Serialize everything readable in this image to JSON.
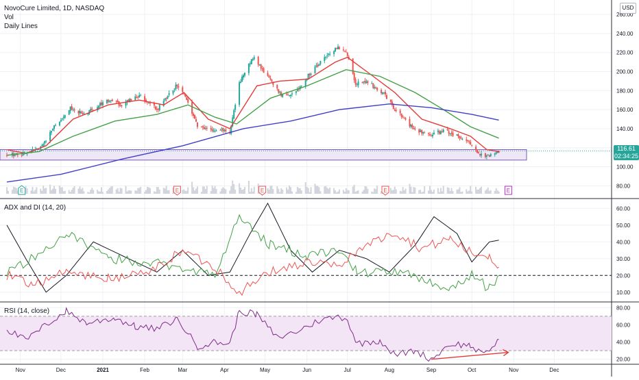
{
  "header": {
    "symbol": "NovoCure Limited, 1D, NASDAQ",
    "vol_label": "Vol",
    "lines_label": "Daily Lines",
    "currency": "USD"
  },
  "last_price": {
    "value": "116.61",
    "countdown": "02:34:25",
    "color": "#26a69a"
  },
  "indicators": {
    "adx_title": "ADX and DI (14, 20)",
    "rsi_title": "RSI (14, close)"
  },
  "colors": {
    "up": "#26a69a",
    "down": "#ef5350",
    "ema_fast": "#e53935",
    "ema_mid": "#43a047",
    "sma_slow": "#3f3fc7",
    "zone_fill": "#ede7f6",
    "zone_border": "#7e57c2",
    "adx": "#131722",
    "di_plus": "#43a047",
    "di_minus": "#ef5350",
    "rsi": "#7e2b8a",
    "rsi_band": "#f3e5f5",
    "trendline": "#e53935",
    "earnings_past": "#ef5350",
    "earnings_next": "#c026d3",
    "earnings_first": "#26a69a"
  },
  "chart_data": [
    {
      "type": "candlestick",
      "title": "NovoCure Limited, 1D, NASDAQ",
      "x_tick_labels": [
        "Nov",
        "Dec",
        "2021",
        "Feb",
        "Mar",
        "Apr",
        "May",
        "Jun",
        "Jul",
        "Aug",
        "Sep",
        "Oct",
        "Nov",
        "Dec"
      ],
      "y_tick_labels": [
        "80.00",
        "100.00",
        "120.00",
        "140.00",
        "160.00",
        "180.00",
        "200.00",
        "220.00",
        "240.00",
        "260.00"
      ],
      "ylim": [
        68,
        268
      ],
      "price_anchor_points": [
        [
          "2020-10-22",
          112
        ],
        [
          "2020-11-05",
          114
        ],
        [
          "2020-11-16",
          120
        ],
        [
          "2020-11-25",
          140
        ],
        [
          "2020-12-08",
          162
        ],
        [
          "2020-12-18",
          155
        ],
        [
          "2021-01-04",
          170
        ],
        [
          "2021-01-15",
          165
        ],
        [
          "2021-01-28",
          175
        ],
        [
          "2021-02-10",
          160
        ],
        [
          "2021-02-25",
          186
        ],
        [
          "2021-03-03",
          175
        ],
        [
          "2021-03-12",
          142
        ],
        [
          "2021-03-22",
          138
        ],
        [
          "2021-03-29",
          140
        ],
        [
          "2021-04-05",
          136
        ],
        [
          "2021-04-12",
          188
        ],
        [
          "2021-04-22",
          215
        ],
        [
          "2021-05-05",
          190
        ],
        [
          "2021-05-13",
          176
        ],
        [
          "2021-05-24",
          178
        ],
        [
          "2021-06-03",
          198
        ],
        [
          "2021-06-17",
          218
        ],
        [
          "2021-06-24",
          226
        ],
        [
          "2021-06-30",
          222
        ],
        [
          "2021-07-07",
          188
        ],
        [
          "2021-07-15",
          190
        ],
        [
          "2021-07-29",
          175
        ],
        [
          "2021-08-05",
          160
        ],
        [
          "2021-08-19",
          140
        ],
        [
          "2021-08-31",
          133
        ],
        [
          "2021-09-10",
          138
        ],
        [
          "2021-09-24",
          130
        ],
        [
          "2021-09-30",
          125
        ],
        [
          "2021-10-07",
          112
        ],
        [
          "2021-10-14",
          111
        ],
        [
          "2021-10-21",
          116
        ]
      ],
      "support_zone": [
        107,
        118
      ],
      "last_close": 116.61,
      "overlays": [
        {
          "name": "Daily Lines fast",
          "points": [
            [
              "2020-10-22",
              118
            ],
            [
              "2020-11-05",
              114
            ],
            [
              "2020-11-20",
              122
            ],
            [
              "2020-12-10",
              150
            ],
            [
              "2021-01-05",
              165
            ],
            [
              "2021-01-28",
              170
            ],
            [
              "2021-02-15",
              165
            ],
            [
              "2021-03-02",
              178
            ],
            [
              "2021-03-20",
              150
            ],
            [
              "2021-04-05",
              140
            ],
            [
              "2021-04-25",
              185
            ],
            [
              "2021-05-12",
              190
            ],
            [
              "2021-06-02",
              192
            ],
            [
              "2021-06-22",
              210
            ],
            [
              "2021-07-01",
              215
            ],
            [
              "2021-07-20",
              195
            ],
            [
              "2021-08-05",
              178
            ],
            [
              "2021-08-25",
              150
            ],
            [
              "2021-09-15",
              140
            ],
            [
              "2021-09-30",
              132
            ],
            [
              "2021-10-12",
              118
            ],
            [
              "2021-10-21",
              116
            ]
          ]
        },
        {
          "name": "Daily Lines mid",
          "points": [
            [
              "2020-10-22",
              112
            ],
            [
              "2020-11-15",
              116
            ],
            [
              "2020-12-10",
              132
            ],
            [
              "2021-01-10",
              148
            ],
            [
              "2021-02-10",
              155
            ],
            [
              "2021-03-05",
              165
            ],
            [
              "2021-03-25",
              152
            ],
            [
              "2021-04-10",
              145
            ],
            [
              "2021-05-05",
              172
            ],
            [
              "2021-06-01",
              185
            ],
            [
              "2021-06-30",
              202
            ],
            [
              "2021-07-25",
              195
            ],
            [
              "2021-08-20",
              178
            ],
            [
              "2021-09-10",
              160
            ],
            [
              "2021-09-30",
              142
            ],
            [
              "2021-10-21",
              130
            ]
          ]
        },
        {
          "name": "Daily Lines slow",
          "points": [
            [
              "2020-10-22",
              84
            ],
            [
              "2020-12-01",
              92
            ],
            [
              "2021-01-15",
              108
            ],
            [
              "2021-03-01",
              122
            ],
            [
              "2021-04-15",
              140
            ],
            [
              "2021-05-20",
              148
            ],
            [
              "2021-06-25",
              160
            ],
            [
              "2021-08-01",
              166
            ],
            [
              "2021-09-01",
              162
            ],
            [
              "2021-10-01",
              155
            ],
            [
              "2021-10-21",
              149
            ]
          ]
        }
      ],
      "earnings_markers": [
        "2020-11-02",
        "2021-02-25",
        "2021-04-29",
        "2021-07-29",
        "2021-10-28"
      ],
      "earnings_marker_letter": "E"
    },
    {
      "type": "line",
      "title": "ADX and DI (14, 20)",
      "y_tick_labels": [
        "10.00",
        "20.00",
        "30.00",
        "40.00",
        "50.00",
        "60.00"
      ],
      "ylim": [
        5,
        65
      ],
      "reference_level": 20,
      "series": [
        {
          "name": "ADX",
          "points": [
            [
              "2020-10-22",
              50
            ],
            [
              "2020-11-05",
              30
            ],
            [
              "2020-11-20",
              10
            ],
            [
              "2020-12-05",
              20
            ],
            [
              "2020-12-25",
              40
            ],
            [
              "2021-01-20",
              30
            ],
            [
              "2021-02-10",
              22
            ],
            [
              "2021-03-01",
              35
            ],
            [
              "2021-03-20",
              20
            ],
            [
              "2021-04-05",
              22
            ],
            [
              "2021-04-20",
              45
            ],
            [
              "2021-05-03",
              63
            ],
            [
              "2021-05-20",
              35
            ],
            [
              "2021-06-05",
              22
            ],
            [
              "2021-06-25",
              35
            ],
            [
              "2021-07-15",
              30
            ],
            [
              "2021-08-01",
              22
            ],
            [
              "2021-08-20",
              38
            ],
            [
              "2021-09-03",
              55
            ],
            [
              "2021-09-20",
              45
            ],
            [
              "2021-10-01",
              28
            ],
            [
              "2021-10-14",
              40
            ],
            [
              "2021-10-21",
              41
            ]
          ]
        },
        {
          "name": "+DI",
          "points": [
            [
              "2020-10-22",
              22
            ],
            [
              "2020-11-10",
              30
            ],
            [
              "2020-12-05",
              45
            ],
            [
              "2021-01-05",
              30
            ],
            [
              "2021-02-05",
              28
            ],
            [
              "2021-03-01",
              25
            ],
            [
              "2021-03-25",
              20
            ],
            [
              "2021-04-12",
              55
            ],
            [
              "2021-05-05",
              38
            ],
            [
              "2021-06-01",
              32
            ],
            [
              "2021-06-25",
              35
            ],
            [
              "2021-07-08",
              22
            ],
            [
              "2021-08-05",
              22
            ],
            [
              "2021-08-25",
              18
            ],
            [
              "2021-09-15",
              12
            ],
            [
              "2021-10-01",
              20
            ],
            [
              "2021-10-14",
              12
            ],
            [
              "2021-10-21",
              20
            ]
          ]
        },
        {
          "name": "-DI",
          "points": [
            [
              "2020-10-22",
              20
            ],
            [
              "2020-11-10",
              15
            ],
            [
              "2020-12-05",
              22
            ],
            [
              "2021-01-05",
              18
            ],
            [
              "2021-02-05",
              22
            ],
            [
              "2021-03-01",
              35
            ],
            [
              "2021-03-25",
              25
            ],
            [
              "2021-04-12",
              10
            ],
            [
              "2021-05-05",
              22
            ],
            [
              "2021-06-01",
              28
            ],
            [
              "2021-06-25",
              25
            ],
            [
              "2021-07-08",
              35
            ],
            [
              "2021-08-05",
              46
            ],
            [
              "2021-08-25",
              36
            ],
            [
              "2021-09-15",
              42
            ],
            [
              "2021-10-01",
              33
            ],
            [
              "2021-10-14",
              32
            ],
            [
              "2021-10-21",
              25
            ]
          ]
        }
      ]
    },
    {
      "type": "line",
      "title": "RSI (14, close)",
      "y_tick_labels": [
        "20.00",
        "40.00",
        "60.00",
        "80.00"
      ],
      "ylim": [
        15,
        85
      ],
      "bands": [
        30,
        70
      ],
      "series": [
        {
          "name": "RSI",
          "points": [
            [
              "2020-10-22",
              55
            ],
            [
              "2020-11-05",
              42
            ],
            [
              "2020-11-20",
              60
            ],
            [
              "2020-12-05",
              76
            ],
            [
              "2020-12-20",
              62
            ],
            [
              "2021-01-10",
              68
            ],
            [
              "2021-01-25",
              58
            ],
            [
              "2021-02-10",
              55
            ],
            [
              "2021-02-25",
              67
            ],
            [
              "2021-03-12",
              35
            ],
            [
              "2021-03-25",
              40
            ],
            [
              "2021-04-05",
              38
            ],
            [
              "2021-04-12",
              76
            ],
            [
              "2021-04-25",
              72
            ],
            [
              "2021-05-10",
              45
            ],
            [
              "2021-05-24",
              52
            ],
            [
              "2021-06-10",
              65
            ],
            [
              "2021-06-25",
              70
            ],
            [
              "2021-07-01",
              66
            ],
            [
              "2021-07-08",
              38
            ],
            [
              "2021-07-25",
              42
            ],
            [
              "2021-08-05",
              25
            ],
            [
              "2021-08-20",
              30
            ],
            [
              "2021-09-01",
              20
            ],
            [
              "2021-09-15",
              38
            ],
            [
              "2021-09-30",
              36
            ],
            [
              "2021-10-10",
              24
            ],
            [
              "2021-10-21",
              43
            ]
          ]
        }
      ],
      "trendline": [
        [
          "2021-09-01",
          20
        ],
        [
          "2021-10-28",
          28
        ]
      ]
    }
  ]
}
